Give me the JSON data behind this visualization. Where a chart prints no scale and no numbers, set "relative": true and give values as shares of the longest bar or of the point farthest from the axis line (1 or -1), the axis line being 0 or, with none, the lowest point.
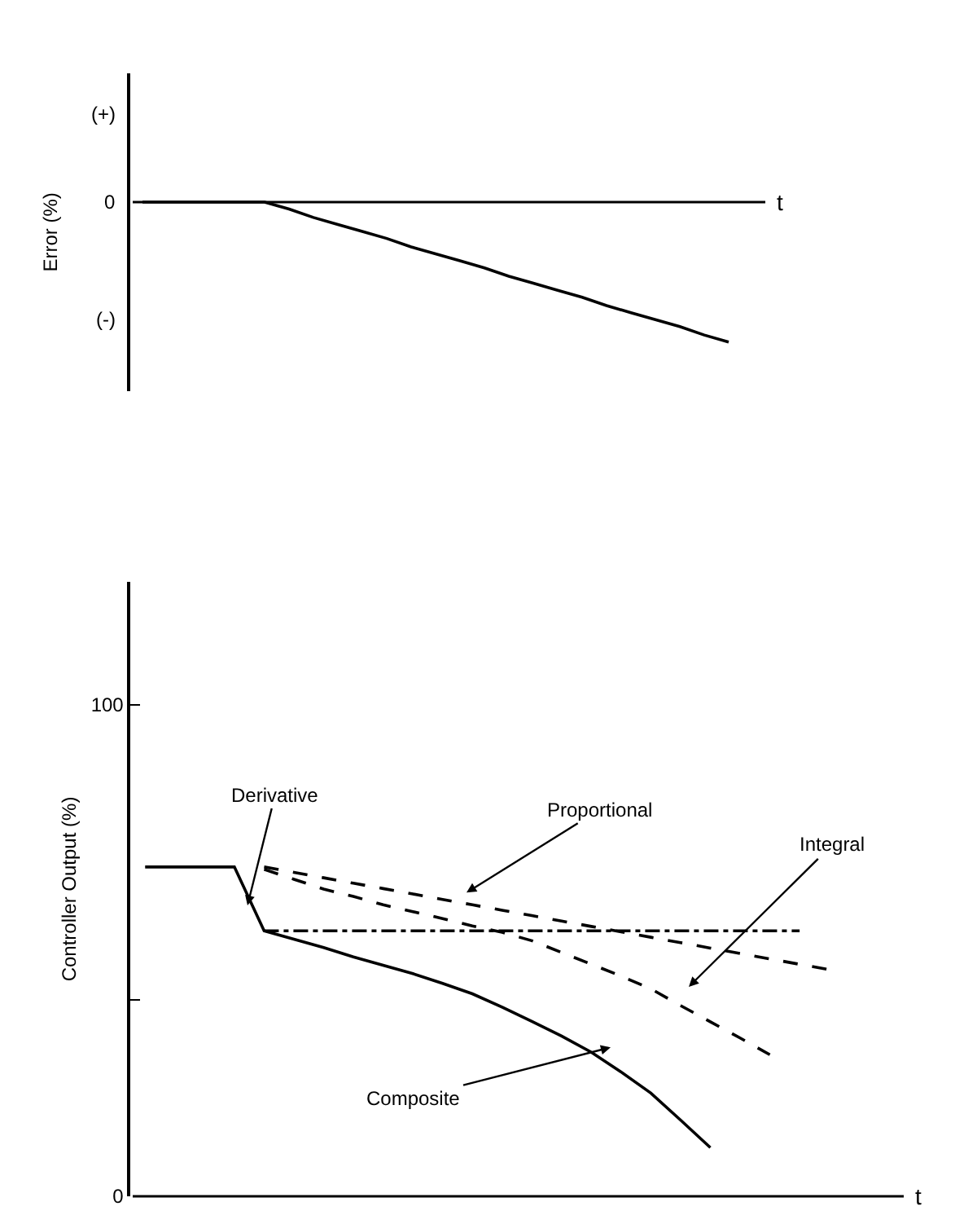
{
  "chart_data": [
    {
      "type": "line",
      "ylabel": "Error (%)",
      "xlabel": "t",
      "categories": [
        null,
        null,
        null,
        null,
        null,
        null,
        null,
        null,
        null,
        null,
        null,
        null,
        null,
        null,
        null,
        null,
        null,
        null,
        null,
        null,
        null,
        null,
        null,
        null,
        null,
        null
      ],
      "values": [
        0,
        0,
        0,
        0,
        0,
        0,
        -0.05,
        -0.11,
        -0.16,
        -0.21,
        -0.26,
        -0.32,
        -0.37,
        -0.42,
        -0.47,
        -0.53,
        -0.58,
        -0.63,
        -0.68,
        -0.74,
        -0.79,
        -0.84,
        -0.89,
        -0.95,
        -1,
        null
      ],
      "color": "#000000",
      "line_style": "solid",
      "relative": true,
      "annotations": [
        "(+)",
        "0",
        "(-)"
      ]
    },
    {
      "type": "line",
      "ylabel": "Controller Output (%)",
      "xlabel": "t",
      "categories": [
        null,
        null,
        null,
        null,
        null,
        null,
        null,
        null,
        null,
        null,
        null,
        null,
        null,
        null,
        null,
        null,
        null,
        null,
        null,
        null,
        null,
        null,
        null,
        null,
        null,
        null
      ],
      "ylim": [
        0,
        125
      ],
      "yticks": [
        0,
        {
          "value": 40,
          "label": null
        },
        100
      ],
      "tick_labels": "y",
      "series": [
        {
          "color": "#000000",
          "line_style": "solid",
          "values": [
            67,
            67,
            67,
            67,
            54,
            52.3,
            50.6,
            48.7,
            47,
            45.3,
            43.3,
            41.2,
            38.5,
            35.6,
            32.6,
            29.3,
            25.3,
            21,
            15.5,
            9.9,
            null,
            null,
            null,
            null,
            null,
            null
          ]
        },
        {
          "color": "#000000",
          "line_style": "dashed",
          "values": [
            null,
            null,
            null,
            null,
            67,
            65.9,
            64.8,
            63.7,
            62.6,
            61.5,
            60.4,
            59.3,
            58.2,
            57.1,
            56,
            54.9,
            53.8,
            52.7,
            51.6,
            50.5,
            49.4,
            48.3,
            47.2,
            46.1,
            null,
            null
          ]
        },
        {
          "color": "#000000",
          "line_style": "dashed",
          "values": [
            null,
            null,
            null,
            null,
            66.5,
            64.5,
            62.5,
            61,
            59.3,
            57.9,
            56.5,
            55,
            53.7,
            52,
            49.6,
            47.2,
            44.8,
            42.2,
            38.8,
            35.5,
            32.2,
            28.8,
            null,
            null,
            null,
            null
          ]
        },
        {
          "color": "#000000",
          "line_style": "dashdot",
          "values": [
            null,
            null,
            null,
            null,
            54,
            54,
            54,
            54,
            54,
            54,
            54,
            54,
            54,
            54,
            54,
            54,
            54,
            54,
            54,
            54,
            54,
            54,
            54,
            null,
            null,
            null
          ]
        }
      ],
      "annotations": [
        "Derivative",
        "Proportional",
        "Integral",
        "Composite"
      ]
    }
  ]
}
